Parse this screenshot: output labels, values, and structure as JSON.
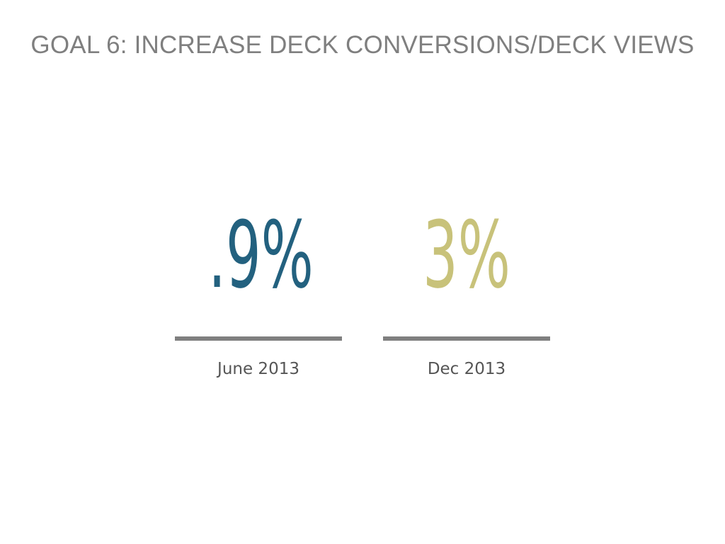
{
  "slide": {
    "title": "GOAL 6: INCREASE DECK CONVERSIONS/DECK VIEWS"
  },
  "stats": [
    {
      "value": ".9%",
      "label": "June 2013",
      "color": "#23617f"
    },
    {
      "value": "3%",
      "label": "Dec 2013",
      "color": "#c8c27a"
    }
  ],
  "colors": {
    "title": "#7f7f7f",
    "divider": "#7f7f7f",
    "label": "#555555",
    "background": "#ffffff"
  }
}
